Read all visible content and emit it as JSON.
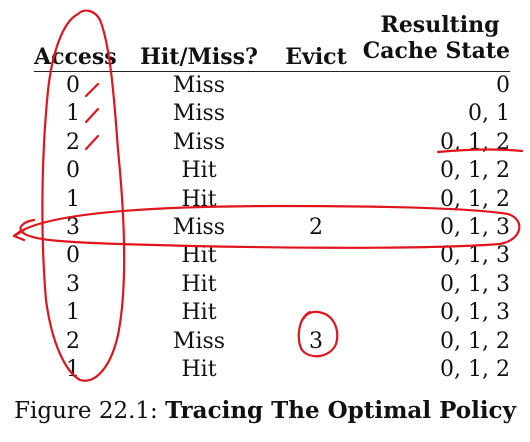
{
  "headers": {
    "access": "Access",
    "hit_miss": "Hit/Miss?",
    "evict": "Evict",
    "state_line1": "Resulting",
    "state_line2": "Cache State"
  },
  "rows": [
    {
      "access": "0",
      "hit_miss": "Miss",
      "evict": "",
      "state": "0"
    },
    {
      "access": "1",
      "hit_miss": "Miss",
      "evict": "",
      "state": "0, 1"
    },
    {
      "access": "2",
      "hit_miss": "Miss",
      "evict": "",
      "state": "0, 1, 2"
    },
    {
      "access": "0",
      "hit_miss": "Hit",
      "evict": "",
      "state": "0, 1, 2"
    },
    {
      "access": "1",
      "hit_miss": "Hit",
      "evict": "",
      "state": "0, 1, 2"
    },
    {
      "access": "3",
      "hit_miss": "Miss",
      "evict": "2",
      "state": "0, 1, 3"
    },
    {
      "access": "0",
      "hit_miss": "Hit",
      "evict": "",
      "state": "0, 1, 3"
    },
    {
      "access": "3",
      "hit_miss": "Hit",
      "evict": "",
      "state": "0, 1, 3"
    },
    {
      "access": "1",
      "hit_miss": "Hit",
      "evict": "",
      "state": "0, 1, 3"
    },
    {
      "access": "2",
      "hit_miss": "Miss",
      "evict": "3",
      "state": "0, 1, 2"
    },
    {
      "access": "1",
      "hit_miss": "Hit",
      "evict": "",
      "state": "0, 1, 2"
    }
  ],
  "caption": {
    "prefix": "Figure 22.1: ",
    "title": "Tracing The Optimal Policy"
  },
  "annotations": {
    "ink_color": "#e0141c",
    "hand_circled_value": "3"
  }
}
